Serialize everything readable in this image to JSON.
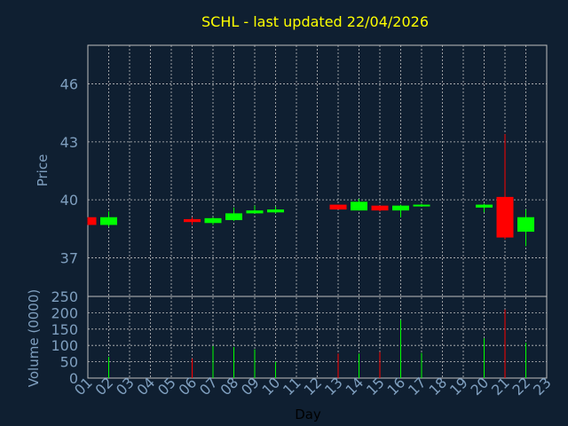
{
  "chart_data": {
    "type": "candlestick",
    "title": "SCHL - last updated 22/04/2026",
    "xlabel": "Day",
    "x_ticks": [
      "01",
      "02",
      "03",
      "04",
      "05",
      "06",
      "07",
      "08",
      "09",
      "10",
      "11",
      "12",
      "13",
      "14",
      "15",
      "16",
      "17",
      "18",
      "19",
      "20",
      "21",
      "22",
      "23"
    ],
    "price": {
      "ylabel": "Price",
      "ylim": [
        35,
        48
      ],
      "y_ticks": [
        37,
        40,
        43,
        46
      ],
      "candles": [
        {
          "day": "01",
          "open": 39.1,
          "high": 39.1,
          "low": 38.7,
          "close": 38.7
        },
        {
          "day": "02",
          "open": 38.7,
          "high": 39.4,
          "low": 38.6,
          "close": 39.1
        },
        {
          "day": "06",
          "open": 39.0,
          "high": 39.1,
          "low": 38.7,
          "close": 38.85
        },
        {
          "day": "07",
          "open": 38.8,
          "high": 39.1,
          "low": 38.7,
          "close": 39.05
        },
        {
          "day": "08",
          "open": 38.95,
          "high": 39.6,
          "low": 38.9,
          "close": 39.3
        },
        {
          "day": "09",
          "open": 39.3,
          "high": 39.7,
          "low": 39.3,
          "close": 39.45
        },
        {
          "day": "10",
          "open": 39.35,
          "high": 39.65,
          "low": 39.3,
          "close": 39.5
        },
        {
          "day": "13",
          "open": 39.75,
          "high": 39.75,
          "low": 39.5,
          "close": 39.5
        },
        {
          "day": "14",
          "open": 39.45,
          "high": 40.05,
          "low": 39.45,
          "close": 39.9
        },
        {
          "day": "15",
          "open": 39.7,
          "high": 39.7,
          "low": 39.4,
          "close": 39.45
        },
        {
          "day": "16",
          "open": 39.45,
          "high": 39.75,
          "low": 39.1,
          "close": 39.7
        },
        {
          "day": "17",
          "open": 39.7,
          "high": 39.8,
          "low": 39.65,
          "close": 39.75
        },
        {
          "day": "20",
          "open": 39.6,
          "high": 39.8,
          "low": 39.35,
          "close": 39.75
        },
        {
          "day": "21",
          "open": 40.15,
          "high": 43.4,
          "low": 37.95,
          "close": 38.05
        },
        {
          "day": "22",
          "open": 38.35,
          "high": 39.5,
          "low": 37.6,
          "close": 39.1
        }
      ]
    },
    "volume": {
      "ylabel": "Volume (0000)",
      "ylim": [
        0,
        250
      ],
      "y_ticks": [
        0,
        50,
        100,
        150,
        200,
        250
      ],
      "bars": [
        {
          "day": "02",
          "value": 65,
          "dir": "up"
        },
        {
          "day": "06",
          "value": 60,
          "dir": "down"
        },
        {
          "day": "07",
          "value": 98,
          "dir": "up"
        },
        {
          "day": "08",
          "value": 95,
          "dir": "up"
        },
        {
          "day": "09",
          "value": 88,
          "dir": "up"
        },
        {
          "day": "10",
          "value": 50,
          "dir": "up"
        },
        {
          "day": "13",
          "value": 75,
          "dir": "down"
        },
        {
          "day": "14",
          "value": 75,
          "dir": "up"
        },
        {
          "day": "15",
          "value": 80,
          "dir": "down"
        },
        {
          "day": "16",
          "value": 178,
          "dir": "up"
        },
        {
          "day": "17",
          "value": 77,
          "dir": "up"
        },
        {
          "day": "20",
          "value": 122,
          "dir": "up"
        },
        {
          "day": "21",
          "value": 210,
          "dir": "down"
        },
        {
          "day": "22",
          "value": 108,
          "dir": "up"
        }
      ]
    },
    "grid": true,
    "colors": {
      "background": "#0f1f31",
      "up": "#00ff00",
      "down": "#ff0000",
      "grid": "#bfbfbf",
      "title": "#ffff00",
      "axis_text": "#7f9fbf",
      "xlabel": "#000000"
    }
  }
}
